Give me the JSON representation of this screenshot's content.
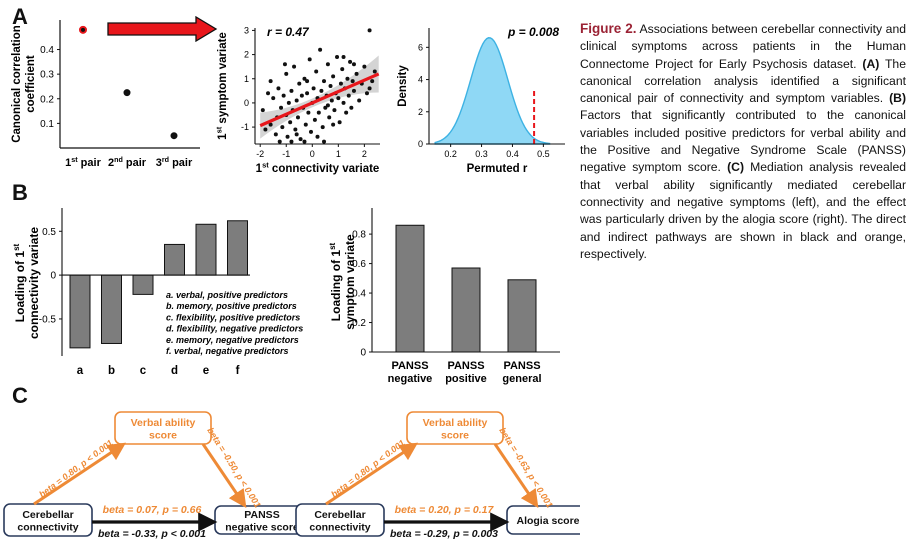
{
  "panels": {
    "a": "A",
    "b": "B",
    "c": "C"
  },
  "caption": {
    "figure_label": "Figure 2.",
    "intro": " Associations between cerebellar connectivity and clinical symptoms across patients in the Human Connectome Project for Early Psychosis dataset. ",
    "a_label": "(A)",
    "a_text": " The canonical correlation analysis identified a significant canonical pair of connectivity and symptom variables. ",
    "b_label": "(B)",
    "b_text": " Factors that significantly contributed to the canonical variables included positive predictors for verbal ability and the Positive and Negative Syndrome Scale (PANSS) negative symptom score. ",
    "c_label": "(C)",
    "c_text": " Mediation analysis revealed that verbal ability significantly mediated cerebellar connectivity and negative symptoms (left), and the effect was particularly driven by the alogia score (right). The direct and indirect pathways are shown in black and orange, respectively."
  },
  "chart_data": [
    {
      "type": "scatter",
      "id": "canonical-correlations",
      "ylabel": "Canonical correlation coefficient",
      "categories": [
        "1st pair",
        "2nd pair",
        "3rd pair"
      ],
      "values": [
        0.48,
        0.225,
        0.05
      ],
      "highlight_color": "#e8161b",
      "ylim": [
        0,
        0.52
      ],
      "yticks": [
        "0.1",
        "0.2",
        "0.3",
        "0.4"
      ]
    },
    {
      "type": "scatter",
      "id": "variate-scatter",
      "annotation": "r = 0.47",
      "xlabel": "1st connectivity variate",
      "ylabel": "1st symptom variate",
      "xticks": [
        "-2",
        "-1",
        "0",
        "1",
        "2"
      ],
      "yticks": [
        "-1",
        "0",
        "1",
        "2",
        "3"
      ],
      "xlim": [
        -2.2,
        2.6
      ],
      "ylim": [
        -1.7,
        3.1
      ],
      "fit": {
        "intercept": 0.0,
        "slope": 0.47,
        "color": "#e8161b"
      },
      "points": [
        [
          -1.9,
          -0.3
        ],
        [
          -1.8,
          -1.1
        ],
        [
          -1.7,
          0.4
        ],
        [
          -1.6,
          -0.9
        ],
        [
          -1.5,
          0.2
        ],
        [
          -1.4,
          -1.3
        ],
        [
          -1.35,
          -0.6
        ],
        [
          -1.3,
          0.6
        ],
        [
          -1.2,
          -0.2
        ],
        [
          -1.15,
          -1.0
        ],
        [
          -1.1,
          0.3
        ],
        [
          -1.0,
          -0.5
        ],
        [
          -1.0,
          1.2
        ],
        [
          -0.95,
          -1.4
        ],
        [
          -0.9,
          0.0
        ],
        [
          -0.85,
          -0.8
        ],
        [
          -0.8,
          0.5
        ],
        [
          -0.75,
          -0.3
        ],
        [
          -0.7,
          1.5
        ],
        [
          -0.65,
          -1.1
        ],
        [
          -0.6,
          0.1
        ],
        [
          -0.55,
          -0.6
        ],
        [
          -0.5,
          0.8
        ],
        [
          -0.45,
          -1.5
        ],
        [
          -0.4,
          0.3
        ],
        [
          -0.35,
          -0.2
        ],
        [
          -0.3,
          1.0
        ],
        [
          -0.25,
          -0.9
        ],
        [
          -0.2,
          0.4
        ],
        [
          -0.15,
          -0.4
        ],
        [
          -0.1,
          1.8
        ],
        [
          -0.05,
          -1.2
        ],
        [
          0.0,
          0.0
        ],
        [
          0.05,
          0.6
        ],
        [
          0.1,
          -0.7
        ],
        [
          0.15,
          1.3
        ],
        [
          0.2,
          0.2
        ],
        [
          0.25,
          -0.4
        ],
        [
          0.3,
          2.2
        ],
        [
          0.35,
          0.5
        ],
        [
          0.4,
          -1.0
        ],
        [
          0.45,
          0.9
        ],
        [
          0.5,
          -0.2
        ],
        [
          0.55,
          0.3
        ],
        [
          0.6,
          1.6
        ],
        [
          0.65,
          -0.6
        ],
        [
          0.7,
          0.7
        ],
        [
          0.75,
          0.1
        ],
        [
          0.8,
          1.1
        ],
        [
          0.85,
          -0.3
        ],
        [
          0.9,
          0.4
        ],
        [
          0.95,
          1.9
        ],
        [
          1.0,
          0.2
        ],
        [
          1.05,
          -0.8
        ],
        [
          1.1,
          0.8
        ],
        [
          1.15,
          1.4
        ],
        [
          1.2,
          0.0
        ],
        [
          1.25,
          0.6
        ],
        [
          1.3,
          -0.4
        ],
        [
          1.35,
          1.0
        ],
        [
          1.4,
          0.3
        ],
        [
          1.45,
          1.7
        ],
        [
          1.5,
          -0.2
        ],
        [
          1.55,
          0.9
        ],
        [
          1.6,
          0.5
        ],
        [
          1.7,
          1.2
        ],
        [
          1.8,
          0.1
        ],
        [
          1.9,
          0.8
        ],
        [
          2.0,
          1.5
        ],
        [
          2.1,
          0.4
        ],
        [
          2.2,
          3.0
        ],
        [
          2.3,
          0.9
        ],
        [
          2.4,
          1.3
        ],
        [
          -1.25,
          -1.6
        ],
        [
          -0.6,
          -1.3
        ],
        [
          0.2,
          -1.4
        ],
        [
          -1.6,
          0.9
        ],
        [
          -0.3,
          -1.6
        ],
        [
          0.8,
          -0.9
        ],
        [
          -1.05,
          1.6
        ],
        [
          0.45,
          -1.6
        ],
        [
          1.2,
          1.9
        ],
        [
          -0.2,
          0.9
        ],
        [
          0.6,
          -0.1
        ],
        [
          1.6,
          1.6
        ],
        [
          -0.8,
          -1.6
        ],
        [
          2.2,
          0.6
        ]
      ]
    },
    {
      "type": "area",
      "id": "permutation-density",
      "annotation": "p = 0.008",
      "xlabel": "Permuted r",
      "ylabel": "Density",
      "xticks": [
        "0.2",
        "0.3",
        "0.4",
        "0.5"
      ],
      "yticks": [
        "0",
        "2",
        "4",
        "6"
      ],
      "xlim": [
        0.13,
        0.57
      ],
      "ylim": [
        0,
        7.2
      ],
      "mean": 0.325,
      "sd": 0.06,
      "peak": 6.6,
      "observed_r": 0.47,
      "fill_color": "#8fd8f5",
      "line_color": "#3db2e3",
      "observed_color": "#e8161b"
    },
    {
      "type": "bar",
      "id": "connectivity-loadings",
      "ylabel": "Loading of 1st connectivity variate",
      "categories": [
        "a",
        "b",
        "c",
        "d",
        "e",
        "f"
      ],
      "values": [
        -0.83,
        -0.78,
        -0.22,
        0.35,
        0.58,
        0.62
      ],
      "ylim": [
        -0.9,
        0.72
      ],
      "yticks": [
        "-0.5",
        "0",
        "0.5"
      ],
      "bar_color": "#7d7d7d",
      "legend": [
        "a.  verbal, positive predictors",
        "b.  memory, positive predictors",
        "c.  flexibility, positive predictors",
        "d.  flexibility, negative predictors",
        "e.  memory, negative predictors",
        "f.   verbal, negative predictors"
      ]
    },
    {
      "type": "bar",
      "id": "symptom-loadings",
      "ylabel": "Loading of 1st symptom variate",
      "categories": [
        "PANSS negative",
        "PANSS positive",
        "PANSS general"
      ],
      "category_lines": [
        [
          "PANSS",
          "negative"
        ],
        [
          "PANSS",
          "positive"
        ],
        [
          "PANSS",
          "general"
        ]
      ],
      "values": [
        0.86,
        0.57,
        0.49
      ],
      "ylim": [
        0,
        0.95
      ],
      "yticks": [
        "0",
        "0.2",
        "0.4",
        "0.6",
        "0.8"
      ],
      "bar_color": "#7d7d7d"
    }
  ],
  "mediation": {
    "left": {
      "mediator": [
        "Verbal ability",
        "score"
      ],
      "predictor": [
        "Cerebellar",
        "connectivity"
      ],
      "outcome": [
        "PANSS",
        "negative score"
      ],
      "path_a": "beta = 0.80, p < 0.001",
      "path_b": "beta = -0.50, p < 0.001",
      "indirect": "beta = 0.07, p = 0.66",
      "direct": "beta = -0.33, p < 0.001"
    },
    "right": {
      "mediator": [
        "Verbal ability",
        "score"
      ],
      "predictor": [
        "Cerebellar",
        "connectivity"
      ],
      "outcome": [
        "Alogia score"
      ],
      "path_a": "beta = 0.80, p < 0.001",
      "path_b": "beta = -0.63, p < 0.001",
      "indirect": "beta = 0.20, p = 0.17",
      "direct": "beta = -0.29, p = 0.003"
    },
    "orange": "#ee8a36",
    "box_border": "#2a3a5c"
  }
}
